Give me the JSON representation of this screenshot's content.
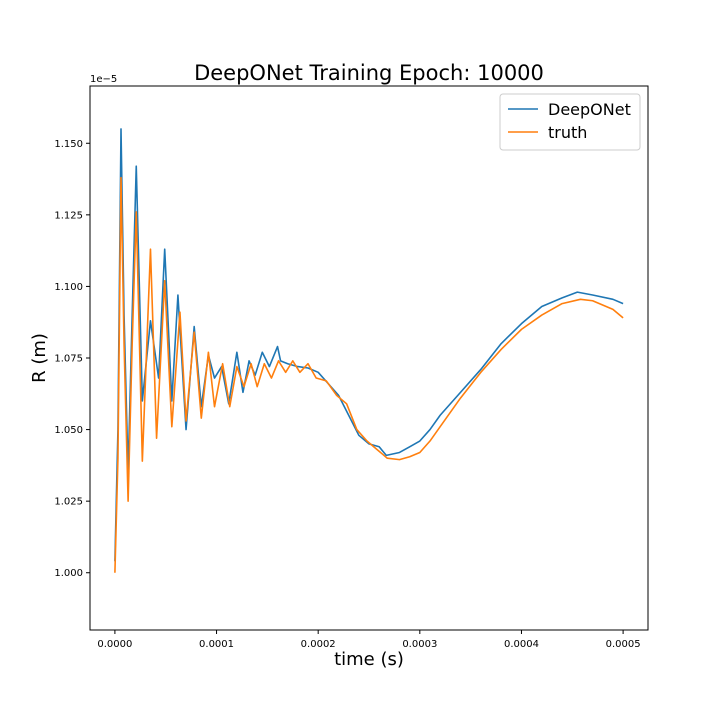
{
  "chart_data": {
    "type": "line",
    "title": "DeepONet Training Epoch: 10000",
    "xlabel": "time (s)",
    "ylabel": "R (m)",
    "y_offset_label": "1e−5",
    "xlim": [
      -2.45e-05,
      0.0005245
    ],
    "ylim": [
      0.98,
      1.17
    ],
    "x_ticks": [
      0.0,
      0.0001,
      0.0002,
      0.0003,
      0.0004,
      0.0005
    ],
    "x_tick_labels": [
      "0.0000",
      "0.0001",
      "0.0002",
      "0.0003",
      "0.0004",
      "0.0005"
    ],
    "y_ticks": [
      1.0,
      1.025,
      1.05,
      1.075,
      1.1,
      1.125,
      1.15
    ],
    "y_tick_labels": [
      "1.000",
      "1.025",
      "1.050",
      "1.075",
      "1.100",
      "1.125",
      "1.150"
    ],
    "grid": false,
    "legend_position": "top-right",
    "series": [
      {
        "name": "DeepONet",
        "color": "#1f77b4",
        "points": [
          [
            0.0,
            1.004
          ],
          [
            3e-06,
            1.05
          ],
          [
            6e-06,
            1.155
          ],
          [
            9e-06,
            1.09
          ],
          [
            1.3e-05,
            1.035
          ],
          [
            1.7e-05,
            1.09
          ],
          [
            2.1e-05,
            1.142
          ],
          [
            2.7e-05,
            1.06
          ],
          [
            3.5e-05,
            1.088
          ],
          [
            4.3e-05,
            1.068
          ],
          [
            4.9e-05,
            1.113
          ],
          [
            5.6e-05,
            1.06
          ],
          [
            6.2e-05,
            1.097
          ],
          [
            7e-05,
            1.05
          ],
          [
            7.8e-05,
            1.086
          ],
          [
            8.5e-05,
            1.058
          ],
          [
            9.2e-05,
            1.076
          ],
          [
            9.8e-05,
            1.068
          ],
          [
            0.000105,
            1.072
          ],
          [
            0.000112,
            1.059
          ],
          [
            0.00012,
            1.077
          ],
          [
            0.000126,
            1.063
          ],
          [
            0.000132,
            1.074
          ],
          [
            0.000138,
            1.069
          ],
          [
            0.000145,
            1.077
          ],
          [
            0.000152,
            1.072
          ],
          [
            0.00016,
            1.079
          ],
          [
            0.000163,
            1.074
          ],
          [
            0.00017,
            1.073
          ],
          [
            0.00018,
            1.072
          ],
          [
            0.00019,
            1.0715
          ],
          [
            0.0002,
            1.07
          ],
          [
            0.00021,
            1.066
          ],
          [
            0.00022,
            1.062
          ],
          [
            0.00023,
            1.055
          ],
          [
            0.00024,
            1.048
          ],
          [
            0.00025,
            1.045
          ],
          [
            0.00026,
            1.044
          ],
          [
            0.000267,
            1.041
          ],
          [
            0.00028,
            1.042
          ],
          [
            0.00029,
            1.044
          ],
          [
            0.0003,
            1.046
          ],
          [
            0.00031,
            1.05
          ],
          [
            0.00032,
            1.055
          ],
          [
            0.00034,
            1.063
          ],
          [
            0.00036,
            1.071
          ],
          [
            0.00038,
            1.08
          ],
          [
            0.0004,
            1.087
          ],
          [
            0.00042,
            1.093
          ],
          [
            0.00044,
            1.096
          ],
          [
            0.000455,
            1.098
          ],
          [
            0.00047,
            1.097
          ],
          [
            0.00049,
            1.0955
          ],
          [
            0.0005,
            1.094
          ]
        ]
      },
      {
        "name": "truth",
        "color": "#ff7f0e",
        "points": [
          [
            0.0,
            1.0
          ],
          [
            3e-06,
            1.04
          ],
          [
            6e-06,
            1.138
          ],
          [
            9e-06,
            1.08
          ],
          [
            1.3e-05,
            1.025
          ],
          [
            1.7e-05,
            1.08
          ],
          [
            2.1e-05,
            1.126
          ],
          [
            2.7e-05,
            1.039
          ],
          [
            3.5e-05,
            1.113
          ],
          [
            4.1e-05,
            1.047
          ],
          [
            4.9e-05,
            1.102
          ],
          [
            5.6e-05,
            1.051
          ],
          [
            6.4e-05,
            1.091
          ],
          [
            7e-05,
            1.053
          ],
          [
            7.8e-05,
            1.084
          ],
          [
            8.5e-05,
            1.054
          ],
          [
            9.2e-05,
            1.077
          ],
          [
            9.8e-05,
            1.058
          ],
          [
            0.000106,
            1.073
          ],
          [
            0.000113,
            1.058
          ],
          [
            0.00012,
            1.072
          ],
          [
            0.000127,
            1.065
          ],
          [
            0.000134,
            1.073
          ],
          [
            0.00014,
            1.065
          ],
          [
            0.000147,
            1.073
          ],
          [
            0.000154,
            1.068
          ],
          [
            0.000161,
            1.074
          ],
          [
            0.000168,
            1.07
          ],
          [
            0.000175,
            1.074
          ],
          [
            0.000182,
            1.07
          ],
          [
            0.00019,
            1.073
          ],
          [
            0.000198,
            1.068
          ],
          [
            0.000208,
            1.067
          ],
          [
            0.000218,
            1.062
          ],
          [
            0.000228,
            1.059
          ],
          [
            0.000238,
            1.05
          ],
          [
            0.000248,
            1.046
          ],
          [
            0.000258,
            1.043
          ],
          [
            0.000268,
            1.04
          ],
          [
            0.00028,
            1.0395
          ],
          [
            0.00029,
            1.0405
          ],
          [
            0.0003,
            1.042
          ],
          [
            0.00031,
            1.046
          ],
          [
            0.00032,
            1.051
          ],
          [
            0.00034,
            1.061
          ],
          [
            0.00036,
            1.07
          ],
          [
            0.00038,
            1.078
          ],
          [
            0.0004,
            1.085
          ],
          [
            0.00042,
            1.09
          ],
          [
            0.00044,
            1.094
          ],
          [
            0.000458,
            1.0955
          ],
          [
            0.00047,
            1.095
          ],
          [
            0.00049,
            1.092
          ],
          [
            0.0005,
            1.089
          ]
        ]
      }
    ]
  }
}
